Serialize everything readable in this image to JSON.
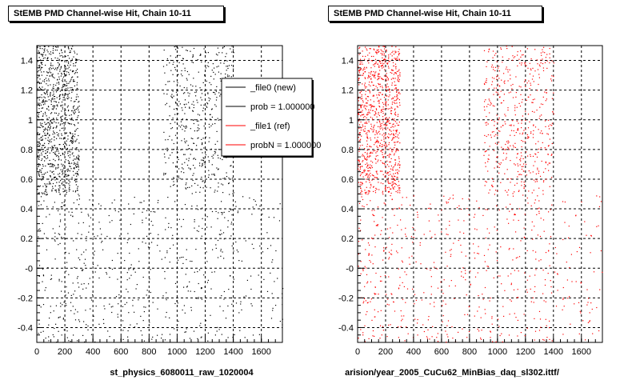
{
  "chart_data": [
    {
      "type": "scatter",
      "title": "StEMB PMD Channel-wise Hit, Chain 10-11",
      "xlabel": "st_physics_6080011_raw_1020004",
      "ylabel": "",
      "xlim": [
        0,
        1750
      ],
      "ylim": [
        -0.5,
        1.5
      ],
      "x_ticks": [
        0,
        200,
        400,
        600,
        800,
        1000,
        1200,
        1400,
        1600
      ],
      "y_ticks": [
        -0.4,
        -0.2,
        0,
        0.2,
        0.4,
        0.6,
        0.8,
        1,
        1.2,
        1.4
      ],
      "y_tick_labels": [
        "-0.4",
        "-0.2",
        "-0",
        "0.2",
        "0.4",
        "0.6",
        "0.8",
        "1",
        "1.2",
        "1.4"
      ],
      "grid": true,
      "marker_color": "#000000",
      "density_regions": [
        {
          "x": [
            0,
            300
          ],
          "y": [
            0.5,
            1.5
          ],
          "density": "high"
        },
        {
          "x": [
            0,
            350
          ],
          "y": [
            -0.5,
            0.5
          ],
          "density": "low"
        },
        {
          "x": [
            350,
            900
          ],
          "y": [
            -0.5,
            0.5
          ],
          "density": "low"
        },
        {
          "x": [
            900,
            1400
          ],
          "y": [
            0.5,
            1.5
          ],
          "density": "medium"
        },
        {
          "x": [
            900,
            1400
          ],
          "y": [
            -0.5,
            0.5
          ],
          "density": "low"
        },
        {
          "x": [
            1400,
            1750
          ],
          "y": [
            -0.5,
            0.5
          ],
          "density": "sparse"
        }
      ],
      "legend": {
        "placement": "top-right",
        "entries": [
          {
            "label": "_file0 (new)",
            "color": "#000000"
          },
          {
            "label": "prob = 1.000000",
            "color": "#000000"
          },
          {
            "label": "_file1 (ref)",
            "color": "#ff0000"
          },
          {
            "label": "probN = 1.000000",
            "color": "#ff0000"
          }
        ]
      }
    },
    {
      "type": "scatter",
      "title": "StEMB PMD Channel-wise Hit, Chain 10-11",
      "xlabel": "arision/year_2005_CuCu62_MinBias_daq_sl302.ittf/",
      "ylabel": "",
      "xlim": [
        0,
        1750
      ],
      "ylim": [
        -0.5,
        1.5
      ],
      "x_ticks": [
        0,
        200,
        400,
        600,
        800,
        1000,
        1200,
        1400,
        1600
      ],
      "y_ticks": [
        -0.4,
        -0.2,
        0,
        0.2,
        0.4,
        0.6,
        0.8,
        1,
        1.2,
        1.4
      ],
      "y_tick_labels": [
        "-0.4",
        "-0.2",
        "-0",
        "0.2",
        "0.4",
        "0.6",
        "0.8",
        "1",
        "1.2",
        "1.4"
      ],
      "grid": true,
      "marker_color": "#ff0000",
      "density_regions": [
        {
          "x": [
            0,
            300
          ],
          "y": [
            0.5,
            1.5
          ],
          "density": "high"
        },
        {
          "x": [
            0,
            350
          ],
          "y": [
            -0.5,
            0.5
          ],
          "density": "low"
        },
        {
          "x": [
            350,
            900
          ],
          "y": [
            -0.5,
            0.5
          ],
          "density": "low"
        },
        {
          "x": [
            900,
            1400
          ],
          "y": [
            0.5,
            1.5
          ],
          "density": "medium"
        },
        {
          "x": [
            900,
            1400
          ],
          "y": [
            -0.5,
            0.5
          ],
          "density": "low"
        },
        {
          "x": [
            1400,
            1750
          ],
          "y": [
            -0.5,
            0.5
          ],
          "density": "sparse"
        }
      ]
    }
  ]
}
